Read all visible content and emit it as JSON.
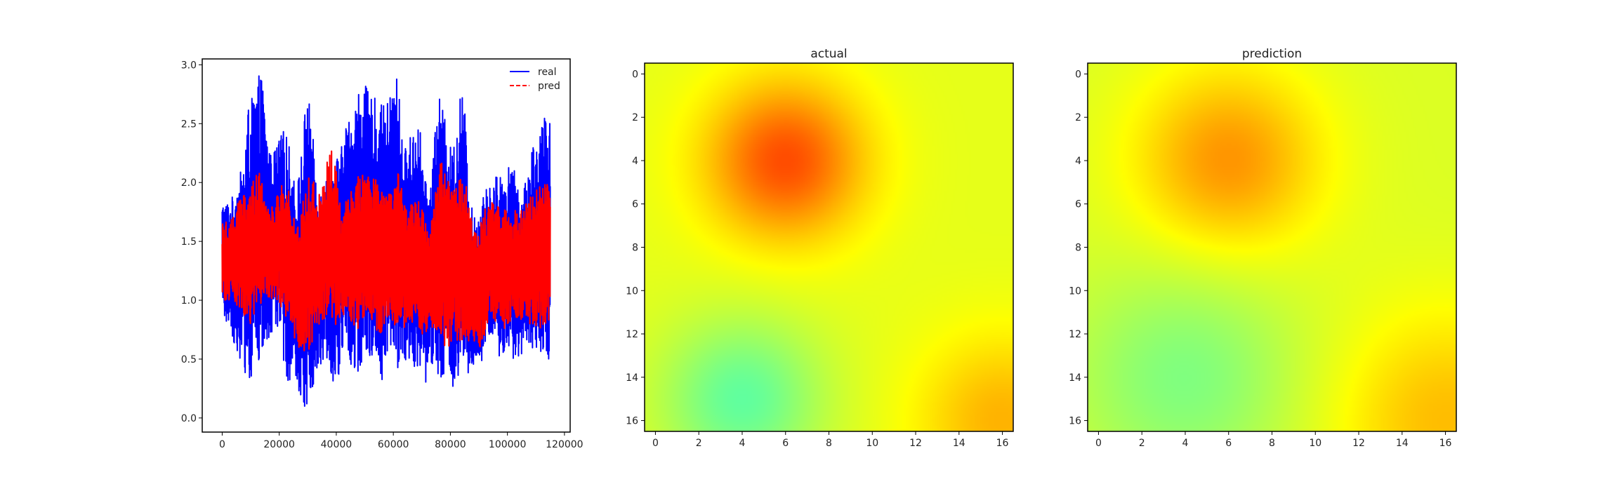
{
  "chart_data": [
    {
      "type": "line",
      "title": "",
      "xlabel": "",
      "ylabel": "",
      "xlim": [
        -7000,
        122000
      ],
      "ylim": [
        -0.12,
        3.05
      ],
      "xticks": [
        0,
        20000,
        40000,
        60000,
        80000,
        100000,
        120000
      ],
      "xtick_labels": [
        "0",
        "20000",
        "40000",
        "60000",
        "80000",
        "100000",
        "120000"
      ],
      "yticks": [
        0.0,
        0.5,
        1.0,
        1.5,
        2.0,
        2.5,
        3.0
      ],
      "ytick_labels": [
        "0.0",
        "0.5",
        "1.0",
        "1.5",
        "2.0",
        "2.5",
        "3.0"
      ],
      "grid": false,
      "legend_position": "top-right",
      "series": [
        {
          "name": "real",
          "color": "#0000ff",
          "style": "solid",
          "x_range": [
            0,
            115000
          ],
          "approx_min": 0.03,
          "approx_max": 2.92,
          "peaks": [
            [
              2500,
              1.85
            ],
            [
              7000,
              2.1
            ],
            [
              9000,
              2.65
            ],
            [
              13500,
              2.92
            ],
            [
              17000,
              2.25
            ],
            [
              22000,
              2.45
            ],
            [
              26000,
              2.0
            ],
            [
              30000,
              2.72
            ],
            [
              34000,
              1.95
            ],
            [
              37500,
              2.12
            ],
            [
              41000,
              2.25
            ],
            [
              44000,
              2.55
            ],
            [
              49000,
              2.85
            ],
            [
              53000,
              2.72
            ],
            [
              57000,
              2.65
            ],
            [
              61000,
              2.92
            ],
            [
              64000,
              2.3
            ],
            [
              68500,
              2.55
            ],
            [
              72000,
              1.95
            ],
            [
              76000,
              2.72
            ],
            [
              80500,
              2.3
            ],
            [
              84000,
              2.8
            ],
            [
              88000,
              1.75
            ],
            [
              93000,
              1.95
            ],
            [
              97000,
              2.1
            ],
            [
              101000,
              2.15
            ],
            [
              105500,
              1.95
            ],
            [
              109000,
              2.35
            ],
            [
              114000,
              2.58
            ]
          ],
          "troughs": [
            [
              2000,
              0.8
            ],
            [
              6000,
              0.5
            ],
            [
              9500,
              0.3
            ],
            [
              14500,
              0.5
            ],
            [
              19000,
              0.75
            ],
            [
              23500,
              0.3
            ],
            [
              27000,
              0.2
            ],
            [
              29500,
              0.05
            ],
            [
              33000,
              0.35
            ],
            [
              36500,
              0.5
            ],
            [
              40000,
              0.25
            ],
            [
              43000,
              0.6
            ],
            [
              47000,
              0.3
            ],
            [
              51000,
              0.55
            ],
            [
              55500,
              0.3
            ],
            [
              58500,
              0.5
            ],
            [
              62500,
              0.4
            ],
            [
              66000,
              0.5
            ],
            [
              70000,
              0.25
            ],
            [
              74000,
              0.4
            ],
            [
              79000,
              0.3
            ],
            [
              82500,
              0.2
            ],
            [
              86000,
              0.35
            ],
            [
              90000,
              0.4
            ],
            [
              94500,
              0.7
            ],
            [
              98000,
              0.45
            ],
            [
              103000,
              0.5
            ],
            [
              108000,
              0.6
            ],
            [
              113500,
              0.5
            ]
          ]
        },
        {
          "name": "pred",
          "color": "#ff0000",
          "style": "dashed",
          "x_range": [
            0,
            115000
          ],
          "approx_min": 0.5,
          "approx_max": 2.35,
          "peaks": [
            [
              3000,
              1.7
            ],
            [
              6500,
              1.9
            ],
            [
              9000,
              1.95
            ],
            [
              13000,
              2.1
            ],
            [
              17000,
              1.8
            ],
            [
              22000,
              2.0
            ],
            [
              26500,
              1.7
            ],
            [
              30500,
              2.1
            ],
            [
              34000,
              1.9
            ],
            [
              38500,
              2.3
            ],
            [
              42000,
              1.8
            ],
            [
              45000,
              2.0
            ],
            [
              49000,
              2.1
            ],
            [
              53000,
              2.05
            ],
            [
              57500,
              1.9
            ],
            [
              61500,
              2.1
            ],
            [
              65000,
              1.8
            ],
            [
              69000,
              1.85
            ],
            [
              72500,
              1.6
            ],
            [
              76500,
              2.2
            ],
            [
              81000,
              2.0
            ],
            [
              85000,
              2.05
            ],
            [
              89000,
              1.6
            ],
            [
              93500,
              1.85
            ],
            [
              97500,
              1.85
            ],
            [
              101500,
              1.75
            ],
            [
              105500,
              1.8
            ],
            [
              109500,
              1.95
            ],
            [
              114500,
              2.0
            ]
          ],
          "troughs": [
            [
              2000,
              1.0
            ],
            [
              5500,
              0.95
            ],
            [
              9500,
              0.8
            ],
            [
              14000,
              0.95
            ],
            [
              18500,
              1.0
            ],
            [
              23000,
              0.8
            ],
            [
              27000,
              0.6
            ],
            [
              30000,
              0.55
            ],
            [
              33500,
              0.75
            ],
            [
              36500,
              0.85
            ],
            [
              40000,
              0.75
            ],
            [
              43500,
              0.9
            ],
            [
              47000,
              0.75
            ],
            [
              51000,
              0.9
            ],
            [
              55000,
              0.7
            ],
            [
              58500,
              0.85
            ],
            [
              62000,
              0.75
            ],
            [
              66500,
              0.8
            ],
            [
              70000,
              0.7
            ],
            [
              74000,
              0.75
            ],
            [
              78500,
              0.6
            ],
            [
              82500,
              0.65
            ],
            [
              86500,
              0.65
            ],
            [
              90500,
              0.6
            ],
            [
              94000,
              0.85
            ],
            [
              98000,
              0.75
            ],
            [
              103000,
              0.85
            ],
            [
              108000,
              0.8
            ],
            [
              113500,
              0.75
            ]
          ]
        }
      ]
    },
    {
      "type": "heatmap",
      "title": "actual",
      "colormap": "jet",
      "grid_size": [
        17,
        17
      ],
      "xticks": [
        0,
        2,
        4,
        6,
        8,
        10,
        12,
        14,
        16
      ],
      "yticks": [
        0,
        2,
        4,
        6,
        8,
        10,
        12,
        14,
        16
      ],
      "base_value": 0.6,
      "features": [
        {
          "kind": "peak",
          "row": 4,
          "col": 6,
          "value": 0.8,
          "radius": 2.6
        },
        {
          "kind": "valley",
          "row": 15,
          "col": 4,
          "value": 0.47,
          "radius": 2.6
        },
        {
          "kind": "peak",
          "row": 16,
          "col": 16,
          "value": 0.7,
          "radius": 2.8
        }
      ]
    },
    {
      "type": "heatmap",
      "title": "prediction",
      "colormap": "jet",
      "grid_size": [
        17,
        17
      ],
      "xticks": [
        0,
        2,
        4,
        6,
        8,
        10,
        12,
        14,
        16
      ],
      "yticks": [
        0,
        2,
        4,
        6,
        8,
        10,
        12,
        14,
        16
      ],
      "base_value": 0.59,
      "features": [
        {
          "kind": "peak",
          "row": 4,
          "col": 6,
          "value": 0.73,
          "radius": 3.0
        },
        {
          "kind": "valley",
          "row": 14,
          "col": 4,
          "value": 0.5,
          "radius": 3.6
        },
        {
          "kind": "peak",
          "row": 16,
          "col": 16,
          "value": 0.69,
          "radius": 3.6
        }
      ]
    }
  ]
}
